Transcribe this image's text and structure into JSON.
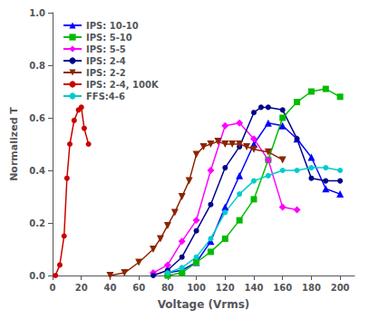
{
  "chart_data": {
    "type": "line",
    "xlabel": "Voltage (Vrms)",
    "ylabel": "Normalized T",
    "xlim": [
      0,
      210
    ],
    "ylim": [
      0.0,
      1.0
    ],
    "xticks": [
      0,
      20,
      40,
      60,
      80,
      100,
      120,
      140,
      160,
      180,
      200
    ],
    "yticks": [
      {
        "value": 0.0,
        "label": "0.0"
      },
      0.2,
      0.4,
      0.6,
      0.8,
      {
        "value": 1.0,
        "label": "1.0"
      }
    ],
    "grid": false,
    "legend": "upper left",
    "series": [
      {
        "name": "IPS: 10-10",
        "color": "#0000FF",
        "marker": "triangle_up",
        "x": [
          80,
          90,
          100,
          110,
          120,
          130,
          140,
          150,
          160,
          170,
          180,
          190,
          200
        ],
        "values": [
          0.01,
          0.02,
          0.05,
          0.13,
          0.26,
          0.38,
          0.5,
          0.58,
          0.57,
          0.52,
          0.45,
          0.33,
          0.31
        ]
      },
      {
        "name": "IPS: 5-10",
        "color": "#00BB00",
        "marker": "square",
        "x": [
          80,
          90,
          100,
          110,
          120,
          130,
          140,
          150,
          160,
          170,
          180,
          190,
          200
        ],
        "values": [
          0.0,
          0.01,
          0.05,
          0.09,
          0.14,
          0.21,
          0.29,
          0.44,
          0.6,
          0.66,
          0.7,
          0.71,
          0.68
        ]
      },
      {
        "name": "IPS: 5-5",
        "color": "#FF00FF",
        "marker": "diamond",
        "x": [
          70,
          80,
          90,
          100,
          110,
          120,
          130,
          140,
          150,
          160,
          170
        ],
        "values": [
          0.01,
          0.04,
          0.13,
          0.21,
          0.4,
          0.57,
          0.58,
          0.52,
          0.44,
          0.26,
          0.25
        ]
      },
      {
        "name": "IPS: 2-4",
        "color": "#00008B",
        "marker": "circle",
        "x": [
          70,
          80,
          90,
          100,
          110,
          120,
          130,
          140,
          145,
          150,
          160,
          170,
          180,
          190,
          200
        ],
        "values": [
          0.0,
          0.02,
          0.07,
          0.17,
          0.27,
          0.41,
          0.49,
          0.62,
          0.64,
          0.64,
          0.63,
          0.52,
          0.37,
          0.36,
          0.36
        ]
      },
      {
        "name": "IPS: 2-2",
        "color": "#8B2500",
        "marker": "triangle_down",
        "x": [
          40,
          50,
          60,
          70,
          75,
          80,
          85,
          90,
          95,
          100,
          105,
          110,
          115,
          120,
          125,
          130,
          135,
          140,
          150,
          160
        ],
        "values": [
          0.0,
          0.01,
          0.05,
          0.1,
          0.14,
          0.19,
          0.24,
          0.3,
          0.36,
          0.46,
          0.49,
          0.5,
          0.51,
          0.5,
          0.5,
          0.5,
          0.49,
          0.48,
          0.47,
          0.44
        ]
      },
      {
        "name": "IPS: 2-4, 100K",
        "color": "#CC0000",
        "marker": "circle",
        "x": [
          2,
          5,
          8,
          10,
          12,
          15,
          18,
          20,
          22,
          25
        ],
        "values": [
          0.0,
          0.04,
          0.15,
          0.37,
          0.5,
          0.59,
          0.63,
          0.64,
          0.56,
          0.5
        ]
      },
      {
        "name": "FFS:4-6",
        "color": "#00CCCC",
        "marker": "circle",
        "x": [
          80,
          90,
          100,
          110,
          120,
          130,
          140,
          150,
          160,
          170,
          180,
          190,
          200
        ],
        "values": [
          0.01,
          0.03,
          0.07,
          0.14,
          0.24,
          0.31,
          0.36,
          0.38,
          0.4,
          0.4,
          0.41,
          0.41,
          0.4
        ]
      }
    ]
  }
}
